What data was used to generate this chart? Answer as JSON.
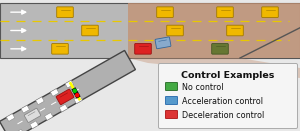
{
  "bg_color": "#e8e8e8",
  "road_color": "#b8b8b8",
  "road_border": "#555555",
  "lane_dash_color": "#e8c800",
  "merge_area_color": "#c49070",
  "merge_area_alpha": 0.75,
  "arrow_color": "#ffffff",
  "car_yellow": "#f0b800",
  "car_yellow_border": "#a07800",
  "car_red": "#dd2222",
  "car_red_border": "#991111",
  "car_blue": "#88aacc",
  "car_blue_border": "#336699",
  "car_green": "#667733",
  "car_green_border": "#445522",
  "ramp_color": "#b0b0b0",
  "ramp_border": "#444444",
  "title": "Control Examples",
  "legend_items": [
    {
      "label": "No control",
      "car_color": "#44aa44",
      "border": "#226622"
    },
    {
      "label": "Acceleration control",
      "car_color": "#5599cc",
      "border": "#2266aa"
    },
    {
      "label": "Deceleration control",
      "car_color": "#dd3333",
      "border": "#aa1111"
    }
  ],
  "title_fontsize": 6.8,
  "legend_fontsize": 5.8,
  "figsize": [
    3.0,
    1.31
  ],
  "dpi": 100
}
